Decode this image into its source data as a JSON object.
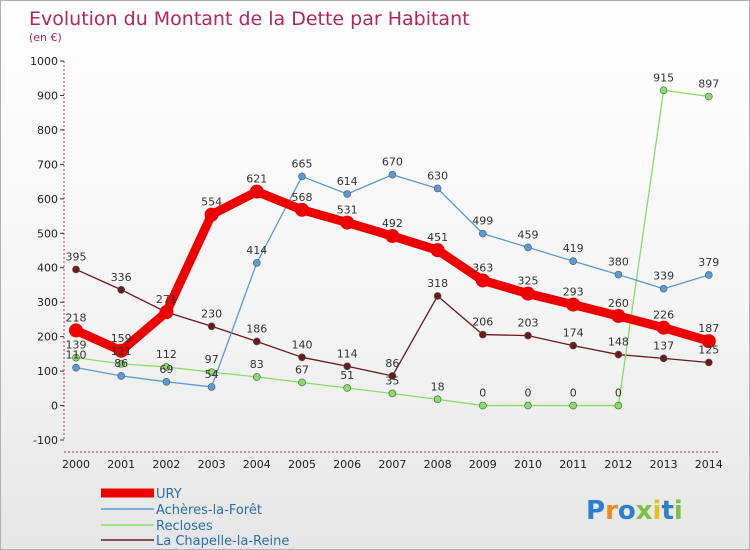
{
  "chart_data": {
    "type": "line",
    "title": "Evolution du Montant de la Dette par Habitant",
    "subtitle": "(en €)",
    "xlabel": "",
    "ylabel": "",
    "ylim": [
      -100,
      1000
    ],
    "yticks": [
      -100,
      0,
      100,
      200,
      300,
      400,
      500,
      600,
      700,
      800,
      900,
      1000
    ],
    "categories": [
      "2000",
      "2001",
      "2002",
      "2003",
      "2004",
      "2005",
      "2006",
      "2007",
      "2008",
      "2009",
      "2010",
      "2011",
      "2012",
      "2013",
      "2014"
    ],
    "grid": false,
    "legend_position": "bottom-left",
    "series": [
      {
        "name": "URY",
        "color": "#ee0000",
        "values": [
          218,
          159,
          271,
          554,
          621,
          568,
          531,
          492,
          451,
          363,
          325,
          293,
          260,
          226,
          187
        ],
        "labels": [
          "218",
          "159",
          "271",
          "554",
          "621",
          "568",
          "531",
          "492",
          "451",
          "363",
          "325",
          "293",
          "260",
          "226",
          "187"
        ]
      },
      {
        "name": "Achères-la-Forêt",
        "color": "#5a9ad6",
        "values": [
          110,
          86,
          69,
          54,
          414,
          665,
          614,
          670,
          630,
          499,
          459,
          419,
          380,
          339,
          379
        ],
        "labels": [
          "110",
          "86",
          "69",
          "54",
          "414",
          "665",
          "614",
          "670",
          "630",
          "499",
          "459",
          "419",
          "380",
          "339",
          "379"
        ]
      },
      {
        "name": "Recloses",
        "color": "#88dd66",
        "values": [
          139,
          121,
          112,
          97,
          83,
          67,
          51,
          35,
          18,
          0,
          0,
          0,
          0,
          915,
          897
        ],
        "labels": [
          "139",
          "121",
          "112",
          "97",
          "83",
          "67",
          "51",
          "35",
          "18",
          "0",
          "0",
          "0",
          "0",
          "915",
          "897"
        ]
      },
      {
        "name": "La Chapelle-la-Reine",
        "color": "#6b1a1a",
        "values": [
          395,
          336,
          271,
          230,
          186,
          140,
          114,
          86,
          318,
          206,
          203,
          174,
          148,
          137,
          125
        ],
        "labels": [
          "395",
          "336",
          "",
          "230",
          "186",
          "140",
          "114",
          "86",
          "318",
          "206",
          "203",
          "174",
          "148",
          "137",
          "125"
        ]
      }
    ]
  },
  "logo": {
    "text": "Proxiti"
  }
}
